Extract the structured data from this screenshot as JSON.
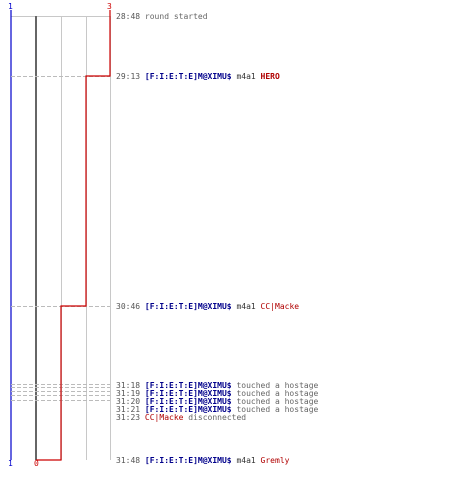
{
  "scores": {
    "blue_top": "1",
    "red_top": "3",
    "blue_bottom": "1",
    "red_bottom": "0"
  },
  "colors": {
    "ct": "#0000cc",
    "tt": "#cc0000",
    "grid": "#c8c8c8",
    "center": "#666666"
  },
  "log": [
    {
      "time": "28:48",
      "parts": [
        {
          "text": "round started",
          "style": "msg"
        }
      ]
    },
    {
      "time": "29:13",
      "parts": [
        {
          "text": "[F:I:E:T:E]M@XIMU$",
          "style": "ct"
        },
        {
          "text": "m4a1",
          "style": "w"
        },
        {
          "text": "HERO",
          "style": "hero"
        }
      ]
    },
    {
      "time": "30:46",
      "parts": [
        {
          "text": "[F:I:E:T:E]M@XIMU$",
          "style": "ct"
        },
        {
          "text": "m4a1",
          "style": "w"
        },
        {
          "text": "CC|Macke",
          "style": "tt"
        }
      ]
    },
    {
      "time": "31:18",
      "parts": [
        {
          "text": "[F:I:E:T:E]M@XIMU$",
          "style": "ct"
        },
        {
          "text": "touched a hostage",
          "style": "msg"
        }
      ]
    },
    {
      "time": "31:19",
      "parts": [
        {
          "text": "[F:I:E:T:E]M@XIMU$",
          "style": "ct"
        },
        {
          "text": "touched a hostage",
          "style": "msg"
        }
      ]
    },
    {
      "time": "31:20",
      "parts": [
        {
          "text": "[F:I:E:T:E]M@XIMU$",
          "style": "ct"
        },
        {
          "text": "touched a hostage",
          "style": "msg"
        }
      ]
    },
    {
      "time": "31:21",
      "parts": [
        {
          "text": "[F:I:E:T:E]M@XIMU$",
          "style": "ct"
        },
        {
          "text": "touched a hostage",
          "style": "msg"
        }
      ]
    },
    {
      "time": "31:23",
      "parts": [
        {
          "text": "CC|Macke",
          "style": "tt"
        },
        {
          "text": "disconnected",
          "style": "msg"
        }
      ]
    },
    {
      "time": "31:48",
      "parts": [
        {
          "text": "[F:I:E:T:E]M@XIMU$",
          "style": "ct"
        },
        {
          "text": "m4a1",
          "style": "w"
        },
        {
          "text": "Gremly",
          "style": "tt"
        }
      ]
    }
  ]
}
